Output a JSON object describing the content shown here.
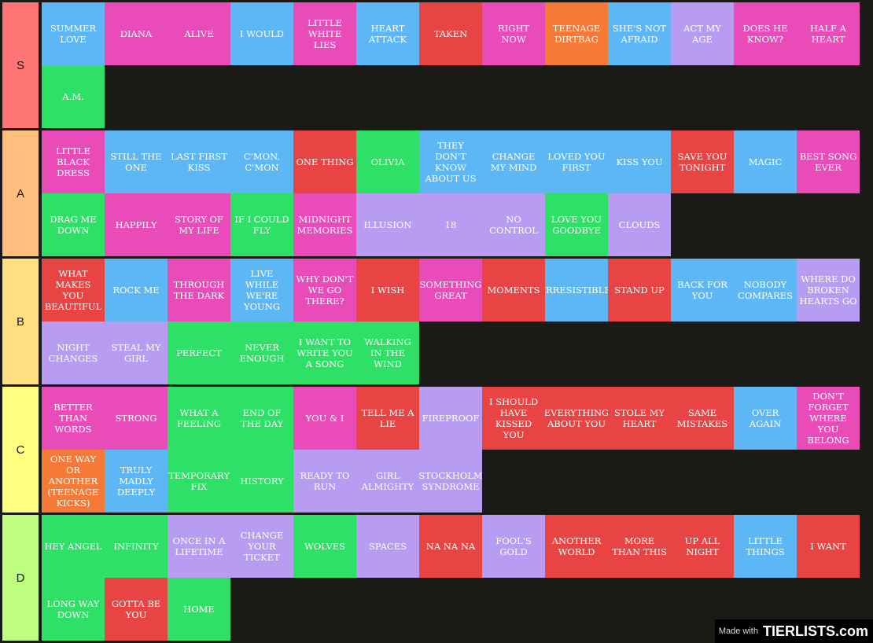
{
  "colors": {
    "blue": "#5eb7f5",
    "pink": "#e94cb8",
    "red": "#e94444",
    "orange": "#f57a37",
    "lavender": "#b79cf2",
    "green": "#2fe066"
  },
  "tiers": [
    {
      "label": "S",
      "color": "#ff7575",
      "items": [
        {
          "text": "SUMMER LOVE",
          "color": "blue"
        },
        {
          "text": "DIANA",
          "color": "pink"
        },
        {
          "text": "ALIVE",
          "color": "pink"
        },
        {
          "text": "I WOULD",
          "color": "blue"
        },
        {
          "text": "LITTLE WHITE LIES",
          "color": "pink"
        },
        {
          "text": "HEART ATTACK",
          "color": "blue"
        },
        {
          "text": "TAKEN",
          "color": "red"
        },
        {
          "text": "RIGHT NOW",
          "color": "pink"
        },
        {
          "text": "TEENAGE DIRTBAG",
          "color": "orange"
        },
        {
          "text": "SHE'S NOT AFRAID",
          "color": "blue"
        },
        {
          "text": "ACT MY AGE",
          "color": "lavender"
        },
        {
          "text": "DOES HE KNOW?",
          "color": "pink"
        },
        {
          "text": "HALF A HEART",
          "color": "pink"
        },
        {
          "text": "A.M.",
          "color": "green"
        }
      ]
    },
    {
      "label": "A",
      "color": "#ffbf7f",
      "items": [
        {
          "text": "LITTLE BLACK DRESS",
          "color": "pink"
        },
        {
          "text": "STILL THE ONE",
          "color": "blue"
        },
        {
          "text": "LAST FIRST KISS",
          "color": "blue"
        },
        {
          "text": "C'MON, C'MON",
          "color": "blue"
        },
        {
          "text": "ONE THING",
          "color": "red"
        },
        {
          "text": "OLIVIA",
          "color": "green"
        },
        {
          "text": "THEY DON'T KNOW ABOUT US",
          "color": "blue"
        },
        {
          "text": "CHANGE MY MIND",
          "color": "blue"
        },
        {
          "text": "LOVED YOU FIRST",
          "color": "blue"
        },
        {
          "text": "KISS YOU",
          "color": "blue"
        },
        {
          "text": "SAVE YOU TONIGHT",
          "color": "red"
        },
        {
          "text": "MAGIC",
          "color": "blue"
        },
        {
          "text": "BEST SONG EVER",
          "color": "pink"
        },
        {
          "text": "DRAG ME DOWN",
          "color": "green"
        },
        {
          "text": "HAPPILY",
          "color": "pink"
        },
        {
          "text": "STORY OF MY LIFE",
          "color": "pink"
        },
        {
          "text": "IF I COULD FLY",
          "color": "green"
        },
        {
          "text": "MIDNIGHT MEMORIES",
          "color": "pink"
        },
        {
          "text": "ILLUSION",
          "color": "lavender"
        },
        {
          "text": "18",
          "color": "lavender"
        },
        {
          "text": "NO CONTROL",
          "color": "lavender"
        },
        {
          "text": "LOVE YOU GOODBYE",
          "color": "green"
        },
        {
          "text": "CLOUDS",
          "color": "lavender"
        }
      ]
    },
    {
      "label": "B",
      "color": "#ffdf7f",
      "items": [
        {
          "text": "WHAT MAKES YOU BEAUTIFUL",
          "color": "red"
        },
        {
          "text": "ROCK ME",
          "color": "blue"
        },
        {
          "text": "THROUGH THE DARK",
          "color": "pink"
        },
        {
          "text": "LIVE WHILE WE'RE YOUNG",
          "color": "blue"
        },
        {
          "text": "WHY DON'T WE GO THERE?",
          "color": "pink"
        },
        {
          "text": "I WISH",
          "color": "red"
        },
        {
          "text": "SOMETHING GREAT",
          "color": "pink"
        },
        {
          "text": "MOMENTS",
          "color": "red"
        },
        {
          "text": "IRRESISTIBLE",
          "color": "blue"
        },
        {
          "text": "STAND UP",
          "color": "red"
        },
        {
          "text": "BACK FOR YOU",
          "color": "blue"
        },
        {
          "text": "NOBODY COMPARES",
          "color": "blue"
        },
        {
          "text": "WHERE DO BROKEN HEARTS GO",
          "color": "lavender"
        },
        {
          "text": "NIGHT CHANGES",
          "color": "lavender"
        },
        {
          "text": "STEAL MY GIRL",
          "color": "lavender"
        },
        {
          "text": "PERFECT",
          "color": "green"
        },
        {
          "text": "NEVER ENOUGH",
          "color": "green"
        },
        {
          "text": "I WANT TO WRITE YOU A SONG",
          "color": "green"
        },
        {
          "text": "WALKING IN THE WIND",
          "color": "green"
        }
      ]
    },
    {
      "label": "C",
      "color": "#ffff7f",
      "items": [
        {
          "text": "BETTER THAN WORDS",
          "color": "pink"
        },
        {
          "text": "STRONG",
          "color": "pink"
        },
        {
          "text": "WHAT A FEELING",
          "color": "green"
        },
        {
          "text": "END OF THE DAY",
          "color": "green"
        },
        {
          "text": "YOU & I",
          "color": "pink"
        },
        {
          "text": "TELL ME A LIE",
          "color": "red"
        },
        {
          "text": "FIREPROOF",
          "color": "lavender"
        },
        {
          "text": "I SHOULD HAVE KISSED YOU",
          "color": "red"
        },
        {
          "text": "EVERYTHING ABOUT YOU",
          "color": "red"
        },
        {
          "text": "STOLE MY HEART",
          "color": "red"
        },
        {
          "text": "SAME MISTAKES",
          "color": "red"
        },
        {
          "text": "OVER AGAIN",
          "color": "blue"
        },
        {
          "text": "DON'T FORGET WHERE YOU BELONG",
          "color": "pink"
        },
        {
          "text": "ONE WAY OR ANOTHER (TEENAGE KICKS)",
          "color": "orange"
        },
        {
          "text": "TRULY MADLY DEEPLY",
          "color": "blue"
        },
        {
          "text": "TEMPORARY FIX",
          "color": "green"
        },
        {
          "text": "HISTORY",
          "color": "green"
        },
        {
          "text": "READY TO RUN",
          "color": "lavender"
        },
        {
          "text": "GIRL ALMIGHTY",
          "color": "lavender"
        },
        {
          "text": "STOCKHOLM SYNDROME",
          "color": "lavender"
        }
      ]
    },
    {
      "label": "D",
      "color": "#bfff7f",
      "items": [
        {
          "text": "HEY ANGEL",
          "color": "green"
        },
        {
          "text": "INFINITY",
          "color": "green"
        },
        {
          "text": "ONCE IN A LIFETIME",
          "color": "lavender"
        },
        {
          "text": "CHANGE YOUR TICKET",
          "color": "lavender"
        },
        {
          "text": "WOLVES",
          "color": "green"
        },
        {
          "text": "SPACES",
          "color": "lavender"
        },
        {
          "text": "NA NA NA",
          "color": "red"
        },
        {
          "text": "FOOL'S GOLD",
          "color": "lavender"
        },
        {
          "text": "ANOTHER WORLD",
          "color": "red"
        },
        {
          "text": "MORE THAN THIS",
          "color": "red"
        },
        {
          "text": "UP ALL NIGHT",
          "color": "red"
        },
        {
          "text": "LITTLE THINGS",
          "color": "blue"
        },
        {
          "text": "I WANT",
          "color": "red"
        },
        {
          "text": "LONG WAY DOWN",
          "color": "green"
        },
        {
          "text": "GOTTA BE YOU",
          "color": "red"
        },
        {
          "text": "HOME",
          "color": "green"
        }
      ]
    }
  ],
  "watermark": {
    "made_with": "Made with",
    "brand": "TIERLISTS.com"
  }
}
